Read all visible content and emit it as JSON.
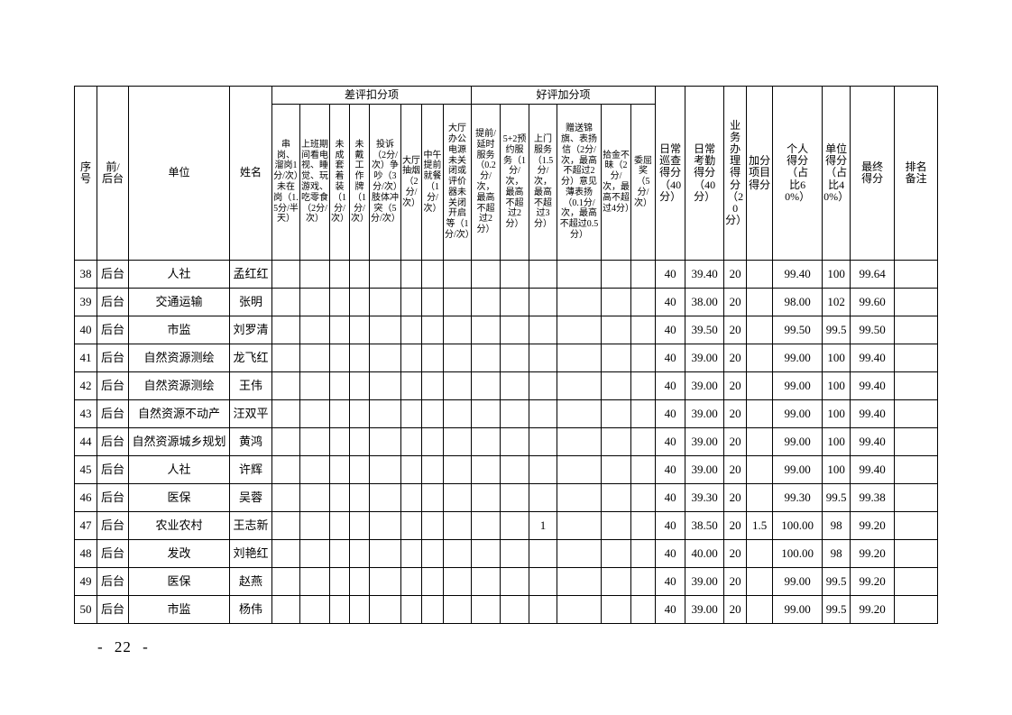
{
  "page": {
    "page_number": "- 22 -"
  },
  "table": {
    "group_headers": {
      "deduction": "差评扣分项",
      "bonus": "好评加分项"
    },
    "columns": {
      "index": "序号",
      "position": "前/后台",
      "unit": "单位",
      "name": "姓名",
      "deduction_items": [
        "串岗、溜岗1分/次）未在岗（1.5分/半天）",
        "上班期间看电视、睡觉、玩游戏、吃零食（2分/次）",
        "未成套着装（1分/次）",
        "未戴工作牌（1分/次）",
        "投诉（2分/次）争吵（3分/次）肢体冲突（5分/次）",
        "大厅抽烟（2分/次）",
        "中午提前就餐（1分/次）",
        "大厅办公电源未关闭或评价器未关闭开启等（1分/次）"
      ],
      "bonus_items": [
        "提前/延时服务（0.2分/次，最高不超过2分）",
        "5+2预约服务（1分/次，最高不超过2分）",
        "上门服务（1.5分/次，最高不超过3分）",
        "赠送锦旗、表扬信（2分/次，最高不超过2分）意见薄表扬（0.1分/次，最高不超过0.5分）",
        "拾金不昧（2分/次，最高不超过4分）",
        "委屈奖（5分/次）"
      ],
      "score_columns": [
        "日常巡查得分（40分）",
        "日常考勤得分（40分）",
        "业务办理得分（20分）",
        "加分项目得分",
        "个人得分（占比60%）",
        "单位得分（占比40%）",
        "最终得分",
        "排名备注"
      ]
    },
    "rows": [
      {
        "no": "38",
        "side": "后台",
        "unit": "人社",
        "name": "孟红红",
        "deductions": [
          "",
          "",
          "",
          "",
          "",
          "",
          "",
          ""
        ],
        "bonuses": [
          "",
          "",
          "",
          "",
          "",
          ""
        ],
        "scores": [
          "40",
          "39.40",
          "20",
          "",
          "99.40",
          "100",
          "99.64"
        ],
        "remark": ""
      },
      {
        "no": "39",
        "side": "后台",
        "unit": "交通运输",
        "name": "张明",
        "deductions": [
          "",
          "",
          "",
          "",
          "",
          "",
          "",
          ""
        ],
        "bonuses": [
          "",
          "",
          "",
          "",
          "",
          ""
        ],
        "scores": [
          "40",
          "38.00",
          "20",
          "",
          "98.00",
          "102",
          "99.60"
        ],
        "remark": ""
      },
      {
        "no": "40",
        "side": "后台",
        "unit": "市监",
        "name": "刘罗清",
        "deductions": [
          "",
          "",
          "",
          "",
          "",
          "",
          "",
          ""
        ],
        "bonuses": [
          "",
          "",
          "",
          "",
          "",
          ""
        ],
        "scores": [
          "40",
          "39.50",
          "20",
          "",
          "99.50",
          "99.5",
          "99.50"
        ],
        "remark": ""
      },
      {
        "no": "41",
        "side": "后台",
        "unit": "自然资源测绘",
        "name": "龙飞红",
        "deductions": [
          "",
          "",
          "",
          "",
          "",
          "",
          "",
          ""
        ],
        "bonuses": [
          "",
          "",
          "",
          "",
          "",
          ""
        ],
        "scores": [
          "40",
          "39.00",
          "20",
          "",
          "99.00",
          "100",
          "99.40"
        ],
        "remark": ""
      },
      {
        "no": "42",
        "side": "后台",
        "unit": "自然资源测绘",
        "name": "王伟",
        "deductions": [
          "",
          "",
          "",
          "",
          "",
          "",
          "",
          ""
        ],
        "bonuses": [
          "",
          "",
          "",
          "",
          "",
          ""
        ],
        "scores": [
          "40",
          "39.00",
          "20",
          "",
          "99.00",
          "100",
          "99.40"
        ],
        "remark": ""
      },
      {
        "no": "43",
        "side": "后台",
        "unit": "自然资源不动产",
        "name": "汪双平",
        "deductions": [
          "",
          "",
          "",
          "",
          "",
          "",
          "",
          ""
        ],
        "bonuses": [
          "",
          "",
          "",
          "",
          "",
          ""
        ],
        "scores": [
          "40",
          "39.00",
          "20",
          "",
          "99.00",
          "100",
          "99.40"
        ],
        "remark": ""
      },
      {
        "no": "44",
        "side": "后台",
        "unit": "自然资源城乡规划",
        "name": "黄鸿",
        "deductions": [
          "",
          "",
          "",
          "",
          "",
          "",
          "",
          ""
        ],
        "bonuses": [
          "",
          "",
          "",
          "",
          "",
          ""
        ],
        "scores": [
          "40",
          "39.00",
          "20",
          "",
          "99.00",
          "100",
          "99.40"
        ],
        "remark": ""
      },
      {
        "no": "45",
        "side": "后台",
        "unit": "人社",
        "name": "许辉",
        "deductions": [
          "",
          "",
          "",
          "",
          "",
          "",
          "",
          ""
        ],
        "bonuses": [
          "",
          "",
          "",
          "",
          "",
          ""
        ],
        "scores": [
          "40",
          "39.00",
          "20",
          "",
          "99.00",
          "100",
          "99.40"
        ],
        "remark": ""
      },
      {
        "no": "46",
        "side": "后台",
        "unit": "医保",
        "name": "吴蓉",
        "deductions": [
          "",
          "",
          "",
          "",
          "",
          "",
          "",
          ""
        ],
        "bonuses": [
          "",
          "",
          "",
          "",
          "",
          ""
        ],
        "scores": [
          "40",
          "39.30",
          "20",
          "",
          "99.30",
          "99.5",
          "99.38"
        ],
        "remark": ""
      },
      {
        "no": "47",
        "side": "后台",
        "unit": "农业农村",
        "name": "王志新",
        "deductions": [
          "",
          "",
          "",
          "",
          "",
          "",
          "",
          ""
        ],
        "bonuses": [
          "",
          "",
          "1",
          "",
          "",
          ""
        ],
        "scores": [
          "40",
          "38.50",
          "20",
          "1.5",
          "100.00",
          "98",
          "99.20"
        ],
        "remark": ""
      },
      {
        "no": "48",
        "side": "后台",
        "unit": "发改",
        "name": "刘艳红",
        "deductions": [
          "",
          "",
          "",
          "",
          "",
          "",
          "",
          ""
        ],
        "bonuses": [
          "",
          "",
          "",
          "",
          "",
          ""
        ],
        "scores": [
          "40",
          "40.00",
          "20",
          "",
          "100.00",
          "98",
          "99.20"
        ],
        "remark": ""
      },
      {
        "no": "49",
        "side": "后台",
        "unit": "医保",
        "name": "赵燕",
        "deductions": [
          "",
          "",
          "",
          "",
          "",
          "",
          "",
          ""
        ],
        "bonuses": [
          "",
          "",
          "",
          "",
          "",
          ""
        ],
        "scores": [
          "40",
          "39.00",
          "20",
          "",
          "99.00",
          "99.5",
          "99.20"
        ],
        "remark": ""
      },
      {
        "no": "50",
        "side": "后台",
        "unit": "市监",
        "name": "杨伟",
        "deductions": [
          "",
          "",
          "",
          "",
          "",
          "",
          "",
          ""
        ],
        "bonuses": [
          "",
          "",
          "",
          "",
          "",
          ""
        ],
        "scores": [
          "40",
          "39.00",
          "20",
          "",
          "99.00",
          "99.5",
          "99.20"
        ],
        "remark": ""
      }
    ]
  }
}
